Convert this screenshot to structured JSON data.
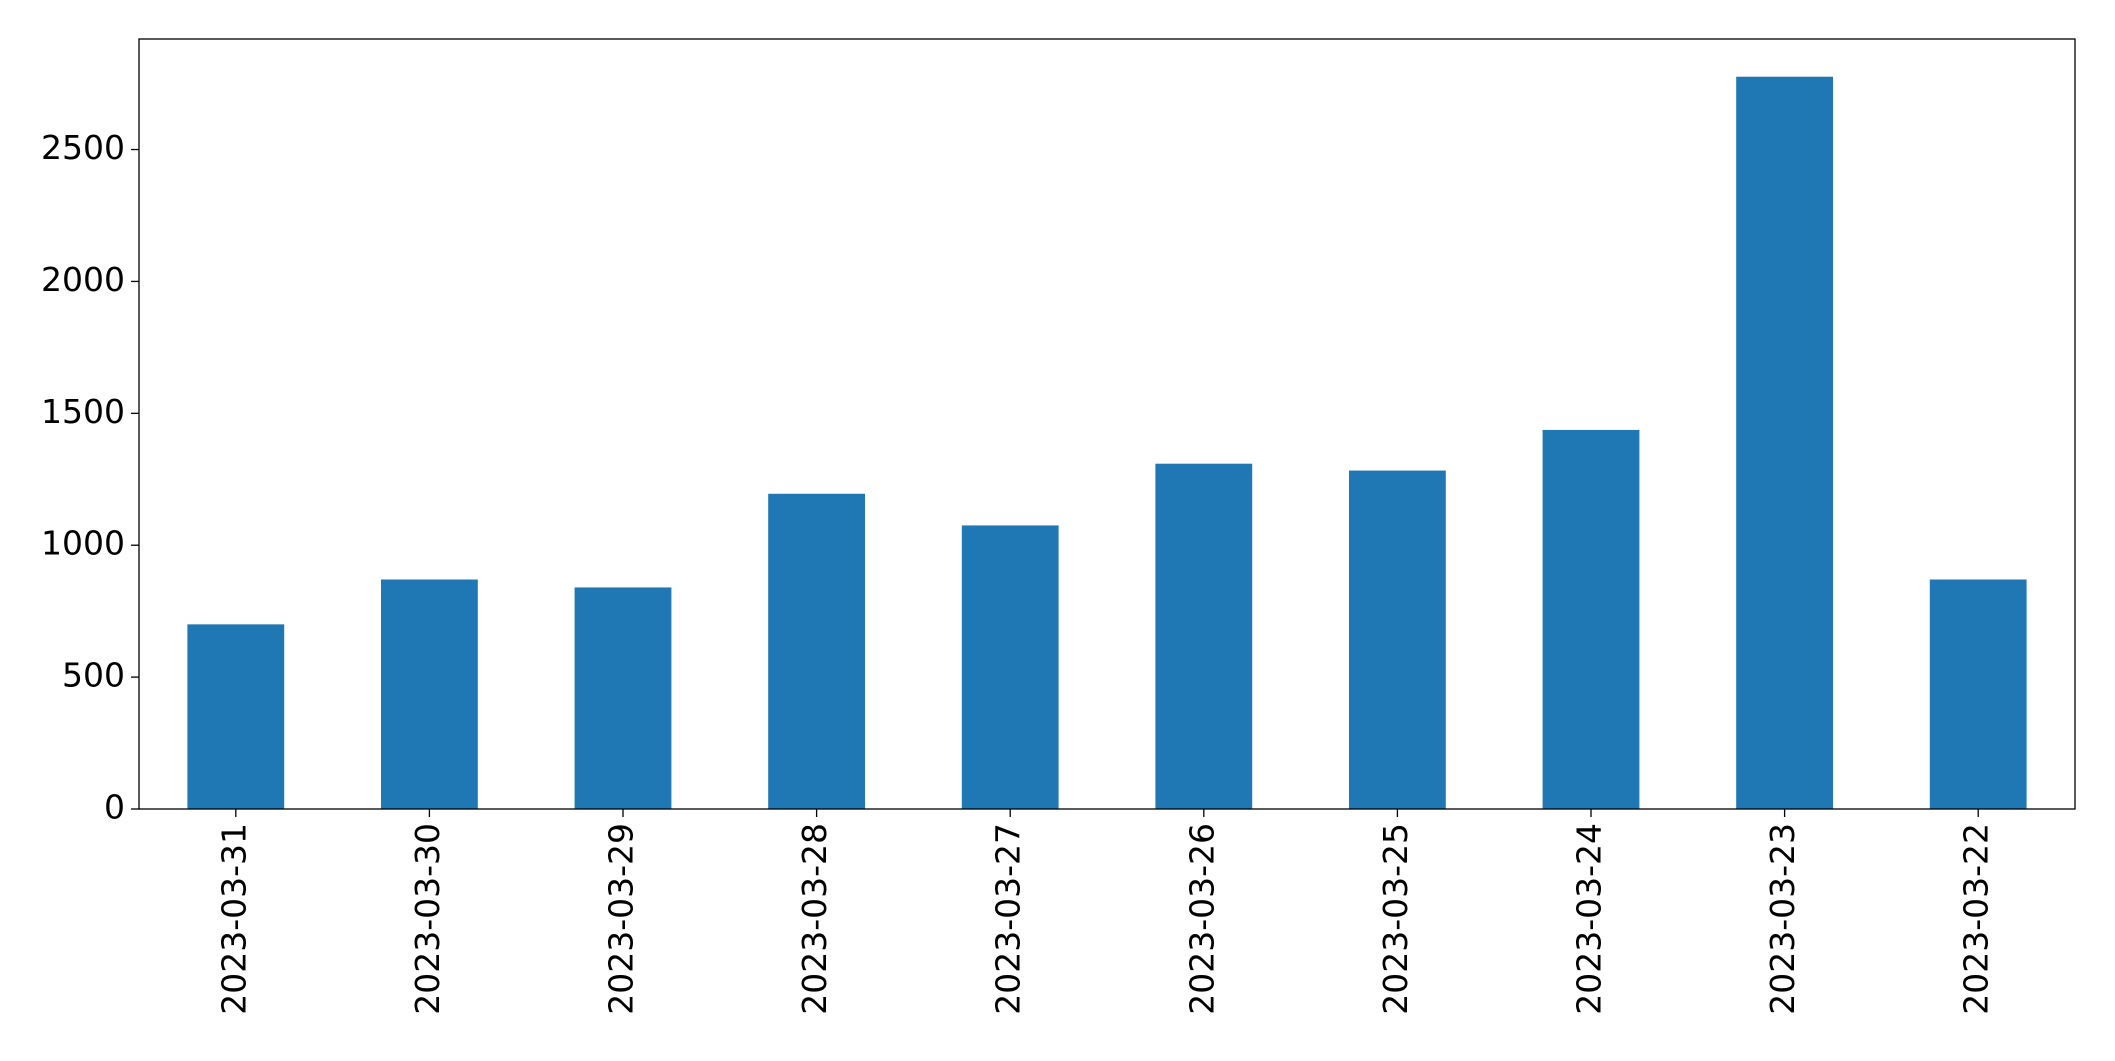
{
  "chart_data": {
    "type": "bar",
    "categories": [
      "2023-03-31",
      "2023-03-30",
      "2023-03-29",
      "2023-03-28",
      "2023-03-27",
      "2023-03-26",
      "2023-03-25",
      "2023-03-24",
      "2023-03-23",
      "2023-03-22"
    ],
    "values": [
      700,
      870,
      840,
      1195,
      1075,
      1309,
      1283,
      1437,
      2776,
      870
    ],
    "color": "#1f77b4",
    "ylim": [
      0,
      2919
    ],
    "yticks": [
      0,
      500,
      1000,
      1500,
      2000,
      2500
    ],
    "grid": false
  }
}
